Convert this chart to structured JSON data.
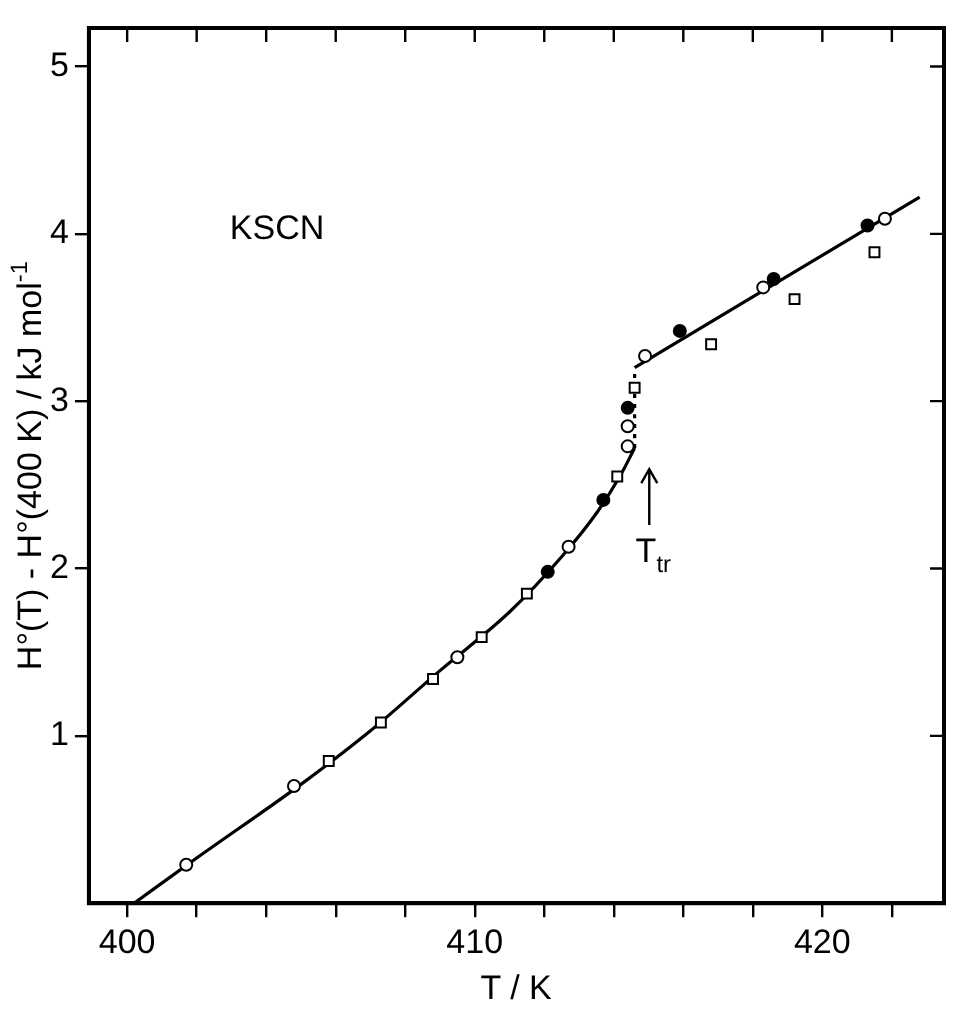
{
  "chart_data": {
    "type": "scatter",
    "xlabel": "T / K",
    "ylabel": "H°(T) - H°(400 K) / kJ mol$^{-1}$",
    "xlim": [
      398.9,
      423.5
    ],
    "ylim": [
      0,
      5.23
    ],
    "xticks": [
      400,
      {
        "value": 402,
        "label": null
      },
      {
        "value": 404,
        "label": null
      },
      {
        "value": 406,
        "label": null
      },
      {
        "value": 408,
        "label": null
      },
      410,
      {
        "value": 412,
        "label": null
      },
      {
        "value": 414,
        "label": null
      },
      {
        "value": 416,
        "label": null
      },
      {
        "value": 418,
        "label": null
      },
      420,
      {
        "value": 422,
        "label": null
      }
    ],
    "yticks": [
      1,
      2,
      3,
      4,
      5
    ],
    "grid": false,
    "legend": false,
    "annotations": [
      "KSCN",
      "T$_{tr}$"
    ],
    "series": [
      {
        "marker": "circle",
        "color": "#000000",
        "x": [
          401.7,
          404.8,
          409.5,
          412.7,
          414.4,
          414.4,
          414.9,
          418.3,
          421.8
        ],
        "values": [
          0.23,
          0.7,
          1.47,
          2.13,
          2.73,
          2.85,
          3.27,
          3.68,
          4.09
        ]
      },
      {
        "marker": "square",
        "color": "#000000",
        "x": [
          405.8,
          407.3,
          408.8,
          410.2,
          411.5,
          414.1,
          414.6,
          416.8,
          419.2,
          421.5
        ],
        "values": [
          0.85,
          1.08,
          1.34,
          1.59,
          1.85,
          2.55,
          3.08,
          3.34,
          3.61,
          3.89
        ]
      },
      {
        "marker": "circle",
        "color": "#000000",
        "x": [
          412.1,
          413.7,
          414.4,
          415.9,
          418.6,
          421.3
        ],
        "values": [
          1.98,
          2.41,
          2.96,
          3.42,
          3.73,
          4.05
        ]
      },
      {
        "type": "line",
        "marker": "none",
        "line_style": "solid",
        "color": "#000000",
        "x": [
          400.2,
          402,
          405,
          407,
          409,
          411,
          412.5,
          413.5,
          414.2,
          414.6
        ],
        "values": [
          0,
          0.27,
          0.71,
          1.03,
          1.39,
          1.74,
          2.07,
          2.33,
          2.56,
          2.72
        ]
      },
      {
        "type": "line",
        "marker": "none",
        "line_style": "dotted",
        "color": "#000000",
        "x": [
          414.6,
          414.6
        ],
        "values": [
          2.72,
          3.2
        ]
      },
      {
        "type": "line",
        "marker": "none",
        "line_style": "solid",
        "color": "#000000",
        "x": [
          414.6,
          422.8
        ],
        "values": [
          3.2,
          4.22
        ]
      }
    ]
  }
}
